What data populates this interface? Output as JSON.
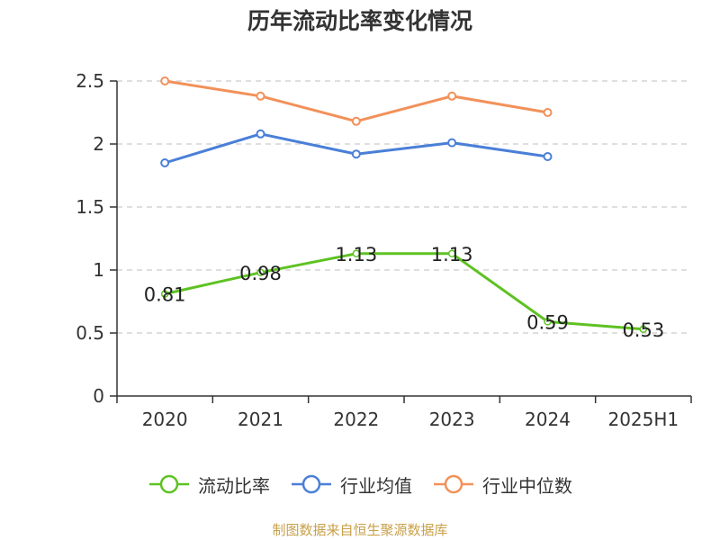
{
  "title": "历年流动比率变化情况",
  "source": "制图数据来自恒生聚源数据库",
  "colors": {
    "liquidity": "#5ec222",
    "industry_avg": "#4a7fd8",
    "industry_median": "#f2915a",
    "grid": "#cccccc",
    "axis": "#333333",
    "text": "#333333",
    "source": "#c8a04a"
  },
  "chart_data": {
    "type": "line",
    "title": "历年流动比率变化情况",
    "categories": [
      "2020",
      "2021",
      "2022",
      "2023",
      "2024",
      "2025H1"
    ],
    "ylim": [
      0,
      2.5
    ],
    "yticks": [
      "0",
      "0.5",
      "1",
      "1.5",
      "2",
      "2.5"
    ],
    "grid": true,
    "legend_position": "bottom",
    "series": [
      {
        "name": "流动比率",
        "color": "#5ec222",
        "values": [
          0.81,
          0.98,
          1.13,
          1.13,
          0.59,
          0.53
        ],
        "labels": [
          "0.81",
          "0.98",
          "1.13",
          "1.13",
          "0.59",
          "0.53"
        ],
        "marker_filled": false
      },
      {
        "name": "行业均值",
        "color": "#4a7fd8",
        "values": [
          1.85,
          2.08,
          1.92,
          2.01,
          1.9,
          null
        ],
        "labels": null
      },
      {
        "name": "行业中位数",
        "color": "#f2915a",
        "values": [
          2.5,
          2.38,
          2.18,
          2.38,
          2.25,
          null
        ],
        "labels": null
      }
    ]
  }
}
